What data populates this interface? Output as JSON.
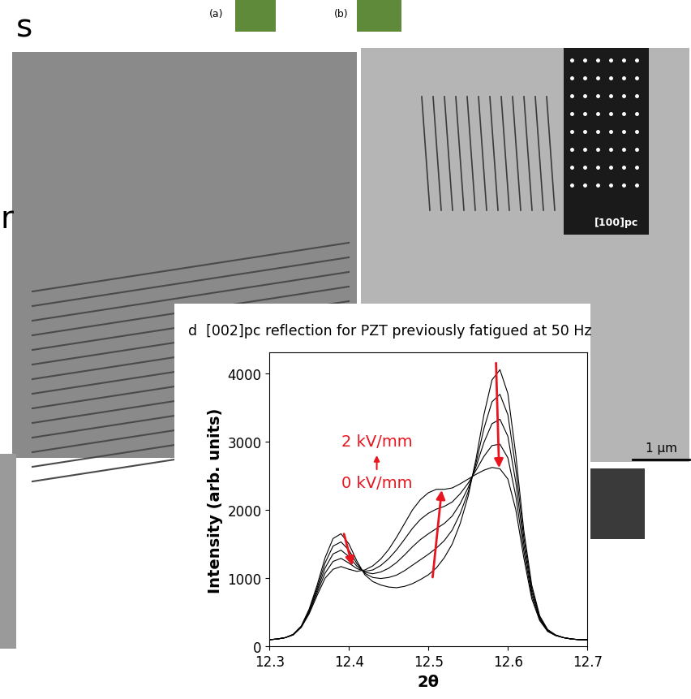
{
  "chart_data": {
    "type": "line",
    "title": "d  [002]pc reflection for PZT previously fatigued at 50 Hz",
    "x_label": "2θ",
    "y_label": "Intensity (arb. units)",
    "annotations": [
      "2 kV/mm",
      "0 kV/mm"
    ],
    "x": [
      12.3,
      12.31,
      12.32,
      12.33,
      12.34,
      12.35,
      12.36,
      12.37,
      12.38,
      12.39,
      12.4,
      12.41,
      12.42,
      12.43,
      12.44,
      12.45,
      12.46,
      12.47,
      12.48,
      12.49,
      12.5,
      12.51,
      12.52,
      12.53,
      12.54,
      12.55,
      12.56,
      12.57,
      12.58,
      12.59,
      12.6,
      12.61,
      12.62,
      12.63,
      12.64,
      12.65,
      12.66,
      12.67,
      12.68,
      12.69,
      12.7
    ],
    "series": [
      {
        "color": "#000000",
        "values": [
          100,
          110,
          130,
          180,
          300,
          550,
          900,
          1300,
          1580,
          1650,
          1500,
          1250,
          1050,
          950,
          900,
          870,
          860,
          880,
          920,
          980,
          1050,
          1150,
          1300,
          1500,
          1800,
          2200,
          2750,
          3400,
          3900,
          4050,
          3700,
          2800,
          1700,
          900,
          450,
          250,
          170,
          130,
          110,
          100,
          100
        ]
      },
      {
        "color": "#000000",
        "values": [
          100,
          110,
          130,
          178,
          295,
          530,
          860,
          1225,
          1470,
          1530,
          1410,
          1210,
          1070,
          1010,
          995,
          1010,
          1045,
          1110,
          1190,
          1270,
          1350,
          1440,
          1550,
          1705,
          1945,
          2260,
          2690,
          3195,
          3580,
          3690,
          3390,
          2600,
          1600,
          850,
          430,
          242,
          168,
          130,
          110,
          100,
          100
        ]
      },
      {
        "color": "#000000",
        "values": [
          100,
          110,
          130,
          175,
          290,
          515,
          825,
          1150,
          1355,
          1410,
          1315,
          1175,
          1085,
          1065,
          1090,
          1145,
          1230,
          1340,
          1460,
          1565,
          1650,
          1725,
          1800,
          1910,
          2090,
          2325,
          2635,
          2990,
          3260,
          3325,
          3075,
          2400,
          1500,
          800,
          415,
          235,
          165,
          130,
          110,
          100,
          100
        ]
      },
      {
        "color": "#000000",
        "values": [
          100,
          110,
          130,
          172,
          285,
          498,
          790,
          1075,
          1245,
          1290,
          1220,
          1140,
          1100,
          1120,
          1185,
          1285,
          1415,
          1570,
          1730,
          1860,
          1950,
          2010,
          2050,
          2115,
          2235,
          2390,
          2580,
          2785,
          2940,
          2960,
          2760,
          2200,
          1400,
          750,
          395,
          228,
          162,
          130,
          110,
          100,
          100
        ]
      },
      {
        "color": "#000000",
        "values": [
          100,
          110,
          130,
          170,
          280,
          480,
          750,
          1000,
          1130,
          1170,
          1130,
          1100,
          1120,
          1180,
          1280,
          1420,
          1600,
          1800,
          2000,
          2150,
          2250,
          2300,
          2300,
          2320,
          2380,
          2450,
          2520,
          2580,
          2620,
          2600,
          2450,
          2000,
          1300,
          700,
          380,
          220,
          160,
          130,
          110,
          100,
          100
        ]
      }
    ],
    "xlim": [
      12.3,
      12.7
    ],
    "xticks": [
      12.3,
      12.4,
      12.5,
      12.6,
      12.7
    ],
    "ylim": [
      0,
      4300
    ],
    "yticks": [
      0,
      1000,
      2000,
      3000,
      4000
    ],
    "grid": false
  },
  "figure_texts": {
    "panel_a": "(a)",
    "panel_b": "(b)",
    "inset_label": "[100]pc",
    "scale_bar": "1 µm",
    "fragment_top": "s",
    "fragment_left": "r"
  }
}
